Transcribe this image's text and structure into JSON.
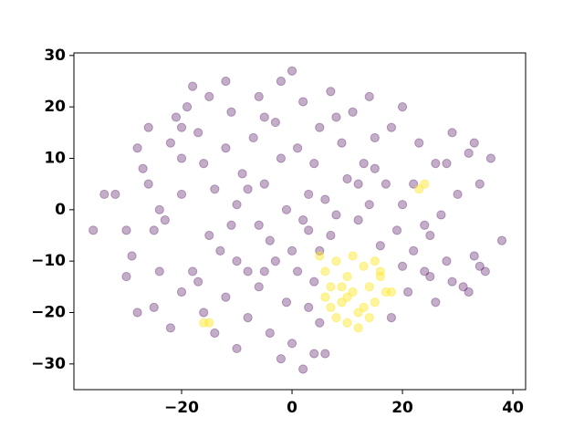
{
  "chart_data": {
    "type": "scatter",
    "xlim": [
      -39.5,
      42.3
    ],
    "ylim": [
      -35.0,
      30.5
    ],
    "xticks": [
      {
        "value": -20,
        "label": "−20"
      },
      0,
      20,
      40
    ],
    "yticks": [
      {
        "value": -30,
        "label": "−30"
      },
      {
        "value": -20,
        "label": "−20"
      },
      {
        "value": -10,
        "label": "−10"
      },
      0,
      10,
      20,
      30
    ],
    "series": [
      {
        "color": "#440154",
        "x": [
          -36,
          -34,
          -32,
          -30,
          -29,
          -28,
          -27,
          -26,
          -25,
          -24,
          -23,
          -22,
          -21,
          -20,
          -19,
          -18,
          -17,
          -16,
          -15,
          -14,
          -13,
          -12,
          -11,
          -10,
          -9,
          -8,
          -7,
          -6,
          -5,
          -4,
          -3,
          -2,
          -1,
          0,
          1,
          2,
          3,
          4,
          5,
          6,
          7,
          8,
          9,
          10,
          11,
          12,
          13,
          14,
          15,
          16,
          17,
          18,
          19,
          20,
          22,
          23,
          24,
          25,
          26,
          27,
          28,
          29,
          30,
          31,
          32,
          33,
          34,
          35,
          36,
          38,
          -28,
          -25,
          -22,
          -20,
          -18,
          -16,
          -14,
          -12,
          -10,
          -8,
          -6,
          -4,
          -2,
          0,
          2,
          3,
          4,
          -1,
          -3,
          1,
          5,
          6,
          18,
          21,
          24,
          26,
          29,
          32,
          34,
          -24,
          -30,
          -20,
          -15,
          -10,
          -6,
          0,
          5,
          22,
          28,
          33,
          25,
          20,
          -8,
          -2,
          3,
          7,
          12,
          15,
          -12,
          -5,
          8,
          14,
          20,
          -26,
          -20,
          2,
          4,
          -17,
          -11,
          -5
        ],
        "y": [
          -4,
          3,
          3,
          -4,
          -9,
          12,
          8,
          5,
          -4,
          -12,
          -2,
          13,
          18,
          10,
          20,
          24,
          15,
          9,
          22,
          4,
          -8,
          12,
          19,
          1,
          7,
          -12,
          14,
          22,
          5,
          -6,
          17,
          25,
          0,
          27,
          12,
          21,
          -4,
          9,
          16,
          2,
          23,
          -1,
          13,
          6,
          19,
          -2,
          9,
          1,
          14,
          -7,
          5,
          16,
          -4,
          1,
          -8,
          13,
          -3,
          -13,
          9,
          -1,
          -10,
          15,
          3,
          -15,
          11,
          -9,
          5,
          -12,
          10,
          -6,
          -20,
          -19,
          -23,
          -16,
          -12,
          -20,
          -24,
          -17,
          -27,
          -21,
          -15,
          -24,
          -29,
          -26,
          -31,
          -19,
          -28,
          -18,
          -10,
          -12,
          -22,
          -28,
          -21,
          -16,
          -12,
          -18,
          -14,
          -16,
          -11,
          0,
          -13,
          3,
          -5,
          -10,
          -3,
          -8,
          -8,
          5,
          9,
          13,
          -5,
          -11,
          4,
          10,
          3,
          -5,
          5,
          8,
          25,
          18,
          18,
          22,
          20,
          16,
          16,
          -2,
          -14,
          -14,
          -3,
          -12
        ]
      },
      {
        "color": "#fde725",
        "x": [
          5,
          6,
          7,
          8,
          9,
          10,
          11,
          12,
          13,
          14,
          15,
          16,
          17,
          8,
          10,
          12,
          13,
          15,
          11,
          9,
          6,
          18,
          14,
          7,
          -15,
          -16,
          23,
          24,
          16,
          10
        ],
        "y": [
          -9,
          -12,
          -15,
          -10,
          -18,
          -13,
          -16,
          -20,
          -11,
          -15,
          -18,
          -13,
          -16,
          -21,
          -22,
          -23,
          -19,
          -10,
          -9,
          -15,
          -17,
          -16,
          -21,
          -19,
          -22,
          -22,
          4,
          5,
          -12,
          -17
        ]
      }
    ]
  }
}
